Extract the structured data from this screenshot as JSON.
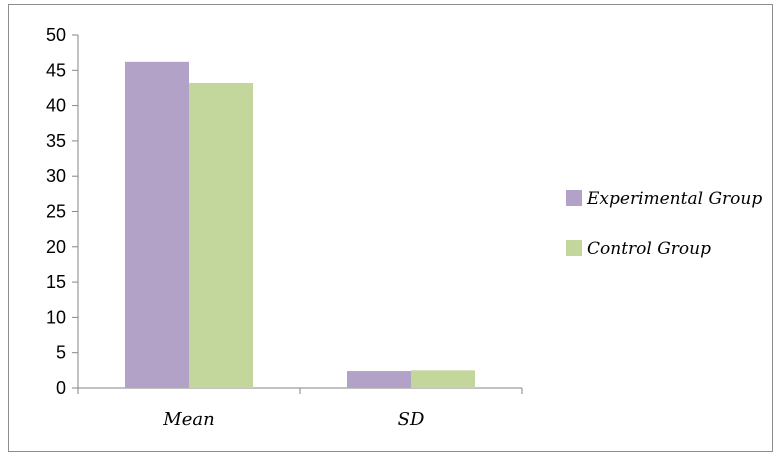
{
  "chart_data": {
    "type": "bar",
    "categories": [
      "Mean",
      "SD"
    ],
    "series": [
      {
        "name": "Experimental Group",
        "values": [
          46.2,
          2.4
        ],
        "color": "#b2a2c7"
      },
      {
        "name": "Control Group",
        "values": [
          43.2,
          2.5
        ],
        "color": "#c3d69b"
      }
    ],
    "y_ticks": [
      "0",
      "5",
      "10",
      "15",
      "20",
      "25",
      "30",
      "35",
      "40",
      "45",
      "50"
    ],
    "ylim": [
      0,
      50
    ],
    "grid": false,
    "legend_position": "right",
    "axis_color": "#868686"
  }
}
